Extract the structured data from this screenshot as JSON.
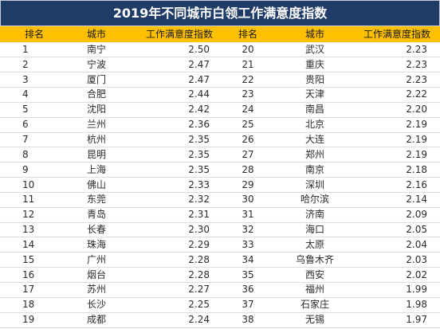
{
  "colors": {
    "title_bg": "#1f3b68",
    "header_bg": "#ffc000",
    "row_line": "#dedede"
  },
  "chart_data": {
    "type": "table",
    "title": "2019年不同城市白领工作满意度指数",
    "columns": [
      "排名",
      "城市",
      "工作满意度指数",
      "排名",
      "城市",
      "工作满意度指数"
    ],
    "records": [
      {
        "rank": 1,
        "city": "南宁",
        "index": "2.50"
      },
      {
        "rank": 2,
        "city": "宁波",
        "index": "2.47"
      },
      {
        "rank": 3,
        "city": "厦门",
        "index": "2.47"
      },
      {
        "rank": 4,
        "city": "合肥",
        "index": "2.44"
      },
      {
        "rank": 5,
        "city": "沈阳",
        "index": "2.42"
      },
      {
        "rank": 6,
        "city": "兰州",
        "index": "2.36"
      },
      {
        "rank": 7,
        "city": "杭州",
        "index": "2.35"
      },
      {
        "rank": 8,
        "city": "昆明",
        "index": "2.35"
      },
      {
        "rank": 9,
        "city": "上海",
        "index": "2.35"
      },
      {
        "rank": 10,
        "city": "佛山",
        "index": "2.33"
      },
      {
        "rank": 11,
        "city": "东莞",
        "index": "2.32"
      },
      {
        "rank": 12,
        "city": "青岛",
        "index": "2.31"
      },
      {
        "rank": 13,
        "city": "长春",
        "index": "2.30"
      },
      {
        "rank": 14,
        "city": "珠海",
        "index": "2.29"
      },
      {
        "rank": 15,
        "city": "广州",
        "index": "2.28"
      },
      {
        "rank": 16,
        "city": "烟台",
        "index": "2.28"
      },
      {
        "rank": 17,
        "city": "苏州",
        "index": "2.27"
      },
      {
        "rank": 18,
        "city": "长沙",
        "index": "2.25"
      },
      {
        "rank": 19,
        "city": "成都",
        "index": "2.24"
      },
      {
        "rank": 20,
        "city": "武汉",
        "index": "2.23"
      },
      {
        "rank": 21,
        "city": "重庆",
        "index": "2.23"
      },
      {
        "rank": 22,
        "city": "贵阳",
        "index": "2.23"
      },
      {
        "rank": 23,
        "city": "天津",
        "index": "2.22"
      },
      {
        "rank": 24,
        "city": "南昌",
        "index": "2.20"
      },
      {
        "rank": 25,
        "city": "北京",
        "index": "2.19"
      },
      {
        "rank": 26,
        "city": "大连",
        "index": "2.19"
      },
      {
        "rank": 27,
        "city": "郑州",
        "index": "2.19"
      },
      {
        "rank": 28,
        "city": "南京",
        "index": "2.18"
      },
      {
        "rank": 29,
        "city": "深圳",
        "index": "2.16"
      },
      {
        "rank": 30,
        "city": "哈尔滨",
        "index": "2.14"
      },
      {
        "rank": 31,
        "city": "济南",
        "index": "2.09"
      },
      {
        "rank": 32,
        "city": "海口",
        "index": "2.05"
      },
      {
        "rank": 33,
        "city": "太原",
        "index": "2.04"
      },
      {
        "rank": 34,
        "city": "乌鲁木齐",
        "index": "2.03"
      },
      {
        "rank": 35,
        "city": "西安",
        "index": "2.02"
      },
      {
        "rank": 36,
        "city": "福州",
        "index": "1.99"
      },
      {
        "rank": 37,
        "city": "石家庄",
        "index": "1.98"
      },
      {
        "rank": 38,
        "city": "无锡",
        "index": "1.97"
      }
    ]
  }
}
